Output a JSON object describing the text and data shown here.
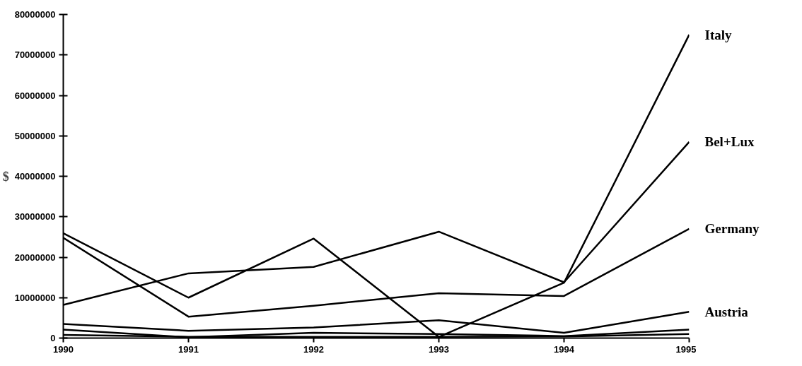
{
  "chart_data": {
    "type": "line",
    "ylabel": "$",
    "x": [
      1990,
      1991,
      1992,
      1993,
      1994,
      1995
    ],
    "series": [
      {
        "name": "Italy",
        "color": "#000000",
        "values": [
          25900000,
          10000000,
          24600000,
          300000,
          13700000,
          75000000
        ]
      },
      {
        "name": "Bel+Lux",
        "color": "#000000",
        "values": [
          8200000,
          16000000,
          17600000,
          26300000,
          13800000,
          48500000
        ]
      },
      {
        "name": "Germany",
        "color": "#000000",
        "values": [
          24800000,
          5300000,
          8000000,
          11100000,
          10400000,
          27000000
        ]
      },
      {
        "name": "Austria",
        "color": "#000000",
        "values": [
          3500000,
          1800000,
          2600000,
          4400000,
          1300000,
          6500000
        ]
      },
      {
        "color": "#000000",
        "values": [
          2100000,
          200000,
          1300000,
          1000000,
          500000,
          2100000
        ]
      },
      {
        "color": "#000000",
        "values": [
          800000,
          300000,
          300000,
          300000,
          400000,
          1000000
        ]
      }
    ],
    "xlim": [
      1990,
      1995
    ],
    "xticks": [
      1990,
      1991,
      1992,
      1993,
      1994,
      1995
    ],
    "ylim": [
      0,
      80000000
    ],
    "yticks": [
      0,
      10000000,
      20000000,
      30000000,
      40000000,
      50000000,
      60000000,
      70000000,
      80000000
    ],
    "grid": false,
    "legend": false,
    "marker": "none",
    "line_style": "solid"
  }
}
